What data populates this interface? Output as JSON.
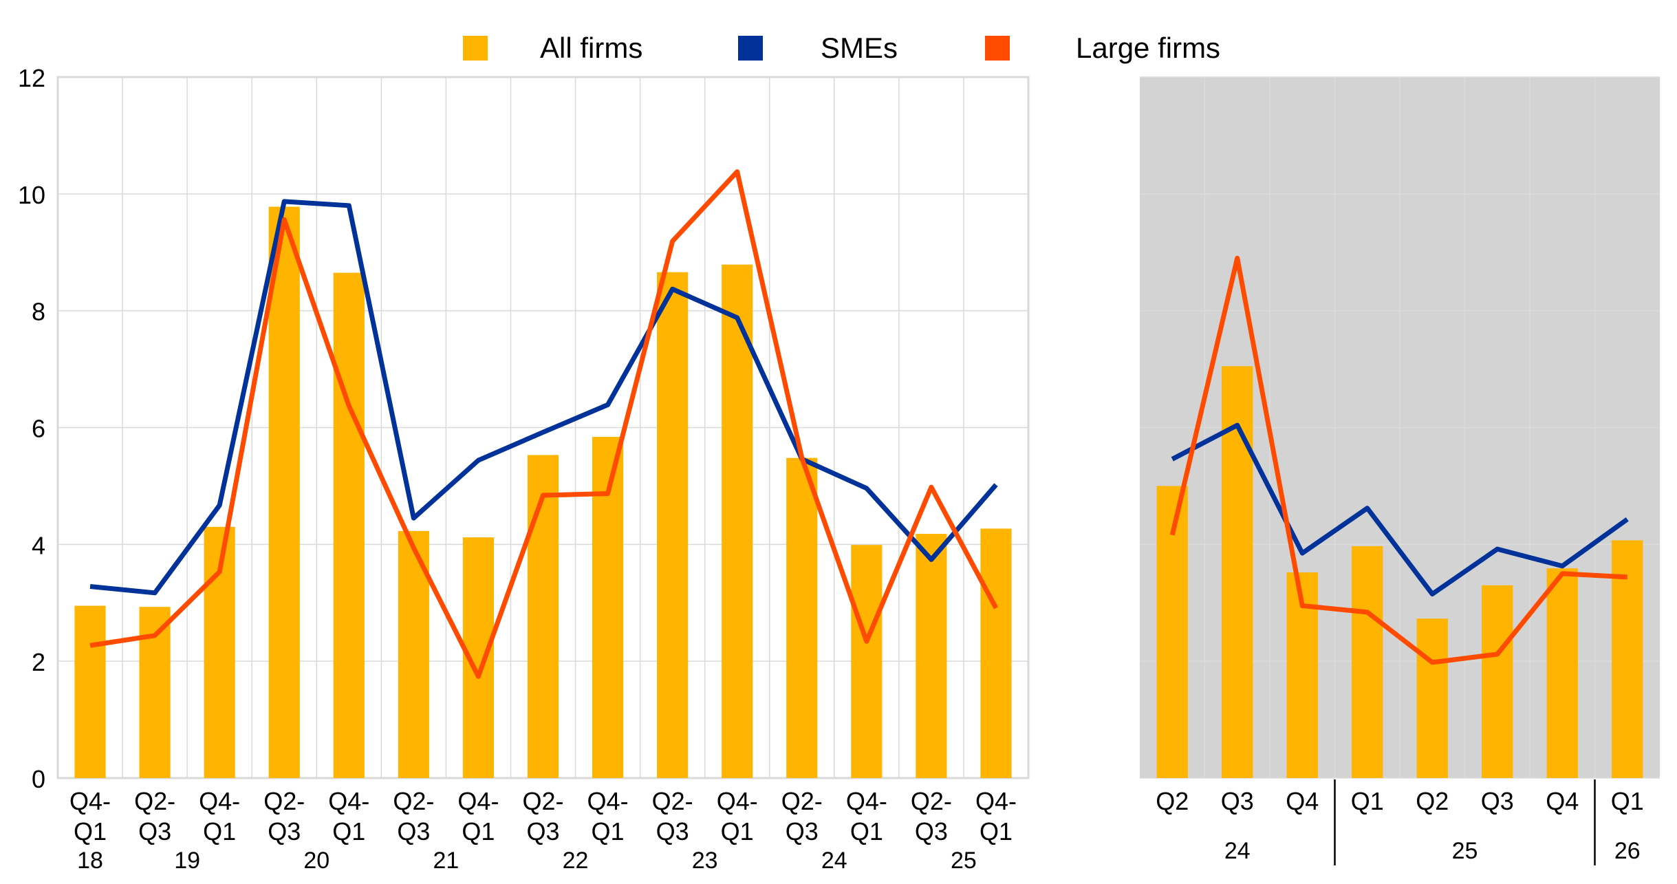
{
  "chart_data": [
    {
      "type": "bar+line",
      "panel": "left",
      "background": "#ffffff",
      "categories": [
        "Q4-Q1 18",
        "Q2-Q3 19",
        "Q4-Q1 19",
        "Q2-Q3 20",
        "Q4-Q1 20",
        "Q2-Q3 21",
        "Q4-Q1 21",
        "Q2-Q3 22",
        "Q4-Q1 22",
        "Q2-Q3 23",
        "Q4-Q1 23",
        "Q2-Q3 24",
        "Q4-Q1 24",
        "Q2-Q3 25",
        "Q4-Q1 25"
      ],
      "tick_labels_line1": [
        "Q4-",
        "Q2-",
        "Q4-",
        "Q2-",
        "Q4-",
        "Q2-",
        "Q4-",
        "Q2-",
        "Q4-",
        "Q2-",
        "Q4-",
        "Q2-",
        "Q4-",
        "Q2-",
        "Q4-"
      ],
      "tick_labels_line2": [
        "Q1",
        "Q3",
        "Q1",
        "Q3",
        "Q1",
        "Q3",
        "Q1",
        "Q3",
        "Q1",
        "Q3",
        "Q1",
        "Q3",
        "Q1",
        "Q3",
        "Q1"
      ],
      "year_labels": [
        "18",
        "19",
        "20",
        "21",
        "22",
        "23",
        "24",
        "25"
      ],
      "series": [
        {
          "name": "All firms",
          "kind": "bar",
          "values": [
            2.95,
            2.93,
            4.3,
            9.78,
            8.65,
            4.23,
            4.12,
            5.53,
            5.84,
            8.66,
            8.79,
            5.48,
            3.99,
            4.18,
            4.27
          ]
        },
        {
          "name": "SMEs",
          "kind": "line",
          "values": [
            3.28,
            3.17,
            4.67,
            9.87,
            9.8,
            4.45,
            5.44,
            5.92,
            6.39,
            8.37,
            7.88,
            5.46,
            4.96,
            3.74,
            5.02
          ]
        },
        {
          "name": "Large firms",
          "kind": "line",
          "values": [
            2.27,
            2.44,
            3.53,
            9.56,
            6.37,
            3.94,
            1.74,
            4.84,
            4.87,
            9.19,
            10.38,
            5.48,
            2.34,
            4.98,
            2.91
          ]
        }
      ],
      "ylim": [
        0,
        12
      ],
      "yticks": [
        "0",
        "2",
        "4",
        "6",
        "8",
        "10",
        "12"
      ],
      "grid": true
    },
    {
      "type": "bar+line",
      "panel": "right",
      "background": "#d3d3d3",
      "categories": [
        "Q2 24",
        "Q3 24",
        "Q4 24",
        "Q1 25",
        "Q2 25",
        "Q3 25",
        "Q4 25",
        "Q1 26"
      ],
      "tick_labels": [
        "Q2",
        "Q3",
        "Q4",
        "Q1",
        "Q2",
        "Q3",
        "Q4",
        "Q1"
      ],
      "year_labels": [
        "24",
        "25",
        "26"
      ],
      "series": [
        {
          "name": "All firms",
          "kind": "bar",
          "values": [
            5.0,
            7.05,
            3.52,
            3.97,
            2.73,
            3.3,
            3.59,
            4.07
          ]
        },
        {
          "name": "SMEs",
          "kind": "line",
          "values": [
            5.46,
            6.04,
            3.85,
            4.62,
            3.15,
            3.92,
            3.63,
            4.43
          ]
        },
        {
          "name": "Large firms",
          "kind": "line",
          "values": [
            4.16,
            8.9,
            2.95,
            2.84,
            1.98,
            2.12,
            3.5,
            3.44
          ]
        }
      ],
      "ylim": [
        0,
        12
      ],
      "grid": true
    }
  ],
  "legend": {
    "placement": "top-center",
    "items": [
      {
        "label": "All firms",
        "color": "#ffb400"
      },
      {
        "label": "SMEs",
        "color": "#003299"
      },
      {
        "label": "Large firms",
        "color": "#ff4b00"
      }
    ]
  },
  "colors": {
    "bars": "#ffb400",
    "smes": "#003299",
    "large": "#ff4b00",
    "grid": "#d9d9d9",
    "shaded": "#d3d3d3"
  }
}
